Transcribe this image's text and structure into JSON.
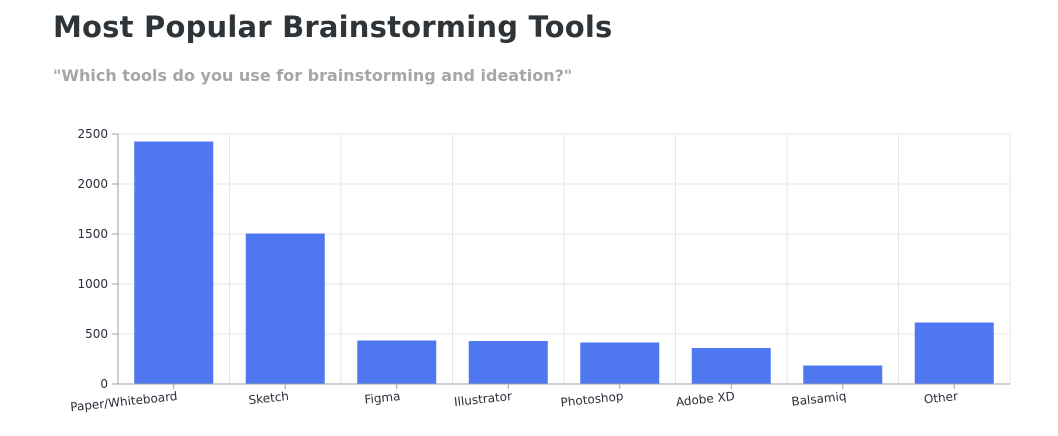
{
  "header": {
    "title": "Most Popular Brainstorming Tools",
    "subtitle": "\"Which tools do you use for brainstorming and ideation?\""
  },
  "chart_data": {
    "type": "bar",
    "categories": [
      "Paper/Whiteboard",
      "Sketch",
      "Figma",
      "Illustrator",
      "Photoshop",
      "Adobe XD",
      "Balsamiq",
      "Other"
    ],
    "values": [
      2425,
      1505,
      435,
      430,
      415,
      360,
      185,
      615
    ],
    "ylim": [
      0,
      2500
    ],
    "yticks": [
      0,
      500,
      1000,
      1500,
      2000,
      2500
    ],
    "grid": true,
    "legend": "none",
    "bar_color": "#4f78f0",
    "grid_color": "#e6e6e6",
    "axis_color": "#9aa0aa"
  }
}
